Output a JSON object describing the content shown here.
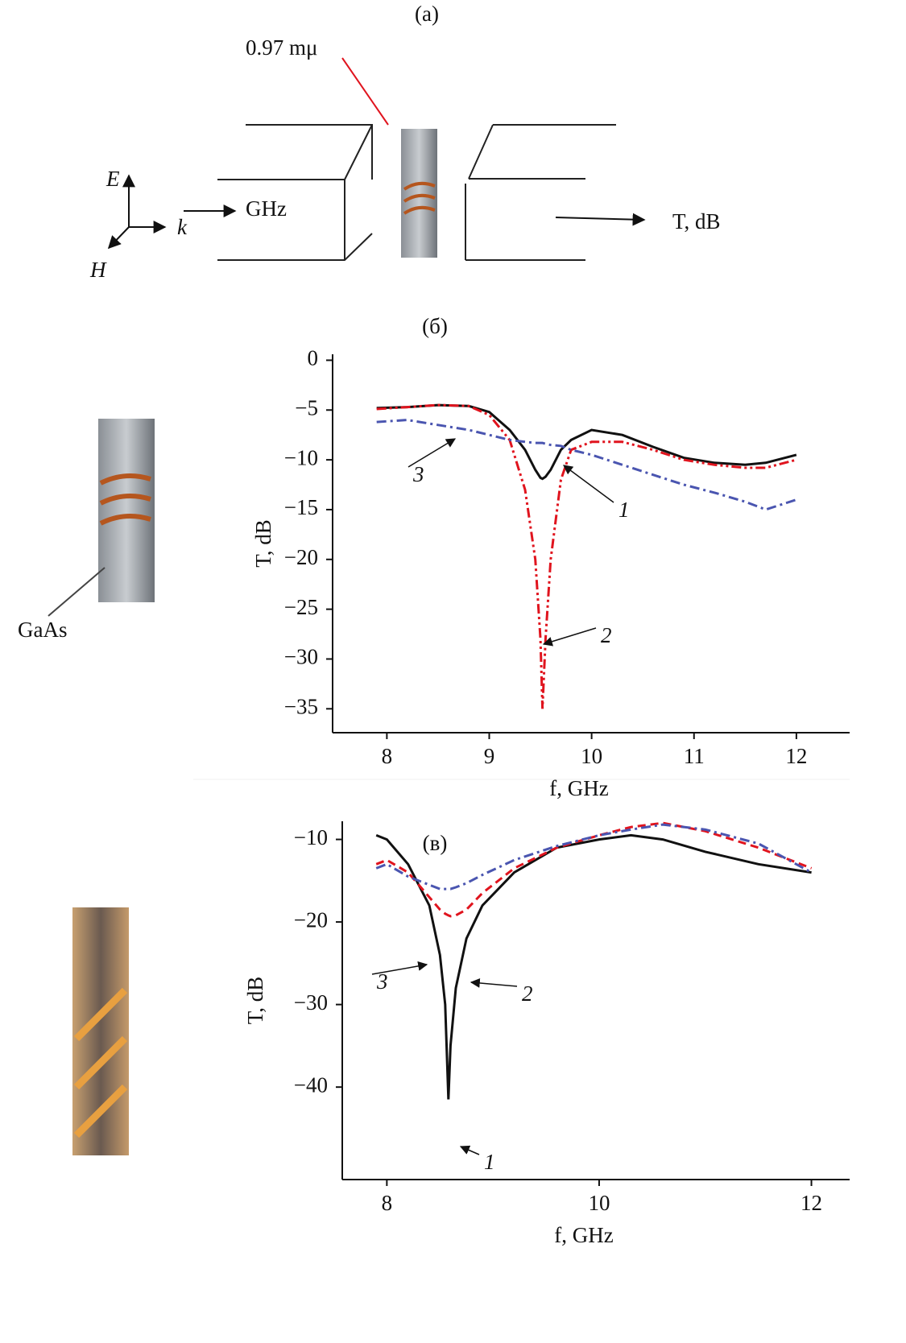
{
  "diagram": {
    "panel_label": "(a)",
    "thickness_label": "0.97 mμ",
    "e_label": "E",
    "k_label": "k",
    "h_label": "H",
    "input_label": "GHz",
    "output_label": "T, dB"
  },
  "photo_label": "GaAs",
  "chart_data": [
    {
      "type": "line",
      "title": "(б)",
      "x_label": "f, GHz",
      "y_label": "T, dB",
      "x": [
        7.9,
        8.2,
        8.5,
        8.8,
        9.0,
        9.2,
        9.35,
        9.45,
        9.5,
        9.52,
        9.55,
        9.6,
        9.7,
        9.8,
        10.0,
        10.3,
        10.6,
        10.9,
        11.2,
        11.5,
        11.7,
        12.0
      ],
      "series": [
        {
          "name": "1",
          "color": "#111111",
          "style": "solid",
          "values": [
            -4.8,
            -4.7,
            -4.5,
            -4.6,
            -5.2,
            -7,
            -9,
            -11,
            -11.8,
            -11.9,
            -11.7,
            -11,
            -9,
            -8,
            -7,
            -7.5,
            -8.7,
            -9.8,
            -10.3,
            -10.5,
            -10.3,
            -9.5
          ]
        },
        {
          "name": "2",
          "color": "#e0141e",
          "style": "dash-dot-dot",
          "values": [
            -4.9,
            -4.7,
            -4.5,
            -4.6,
            -5.5,
            -8,
            -13,
            -20,
            -28,
            -35,
            -28,
            -20,
            -12,
            -9,
            -8.2,
            -8.2,
            -9,
            -10,
            -10.5,
            -10.8,
            -10.8,
            -10
          ]
        },
        {
          "name": "3",
          "color": "#4a55b0",
          "style": "dash-dot",
          "values": [
            -6.2,
            -6,
            -6.5,
            -7,
            -7.5,
            -8,
            -8.2,
            -8.3,
            -8.3,
            -8.3,
            -8.4,
            -8.5,
            -8.6,
            -9,
            -9.5,
            -10.5,
            -11.5,
            -12.5,
            -13.3,
            -14.2,
            -15,
            -14
          ]
        }
      ],
      "xlim": [
        7.47,
        12.52
      ],
      "xticks": [
        8,
        9,
        10,
        11,
        12
      ],
      "ylim": [
        -37.4,
        0.6
      ],
      "yticks": [
        {
          "value": 0,
          "label": "0"
        },
        {
          "value": -5,
          "label": "−5"
        },
        {
          "value": -10,
          "label": "−10"
        },
        {
          "value": -15,
          "label": "−15"
        },
        {
          "value": -20,
          "label": "−20"
        },
        {
          "value": -25,
          "label": "−25"
        },
        {
          "value": -30,
          "label": "−30"
        },
        {
          "value": -35,
          "label": "−35"
        }
      ]
    },
    {
      "type": "line",
      "title": "(в)",
      "x_label": "f, GHz",
      "y_label": "T, dB",
      "x": [
        7.9,
        8.0,
        8.2,
        8.4,
        8.5,
        8.55,
        8.58,
        8.6,
        8.65,
        8.75,
        8.9,
        9.2,
        9.6,
        10.0,
        10.3,
        10.6,
        11.0,
        11.5,
        12.0
      ],
      "series": [
        {
          "name": "1",
          "color": "#111111",
          "style": "solid",
          "values": [
            -9.5,
            -10,
            -13,
            -18,
            -24,
            -30,
            -41.5,
            -35,
            -28,
            -22,
            -18,
            -14,
            -11,
            -10,
            -9.5,
            -10,
            -11.5,
            -13,
            -14
          ]
        },
        {
          "name": "2",
          "color": "#e0141e",
          "style": "dash",
          "values": [
            -13,
            -12.5,
            -14,
            -17,
            -18.5,
            -19,
            -19.2,
            -19.3,
            -19.2,
            -18.5,
            -16.5,
            -13.5,
            -11,
            -9.5,
            -8.5,
            -8,
            -9,
            -11,
            -13.5
          ]
        },
        {
          "name": "3",
          "color": "#4a55b0",
          "style": "dash-dot",
          "values": [
            -13.5,
            -13,
            -14.5,
            -15.5,
            -16,
            -16,
            -16,
            -16,
            -15.8,
            -15.3,
            -14.3,
            -12.5,
            -10.8,
            -9.5,
            -8.8,
            -8.2,
            -8.8,
            -10.5,
            -14
          ]
        }
      ],
      "xlim": [
        7.58,
        12.36
      ],
      "xticks": [
        8,
        10,
        12
      ],
      "ylim": [
        -51.2,
        -7.8
      ],
      "yticks": [
        {
          "value": -10,
          "label": "−10"
        },
        {
          "value": -20,
          "label": "−20"
        },
        {
          "value": -30,
          "label": "−30"
        },
        {
          "value": -40,
          "label": "−40"
        }
      ]
    }
  ]
}
